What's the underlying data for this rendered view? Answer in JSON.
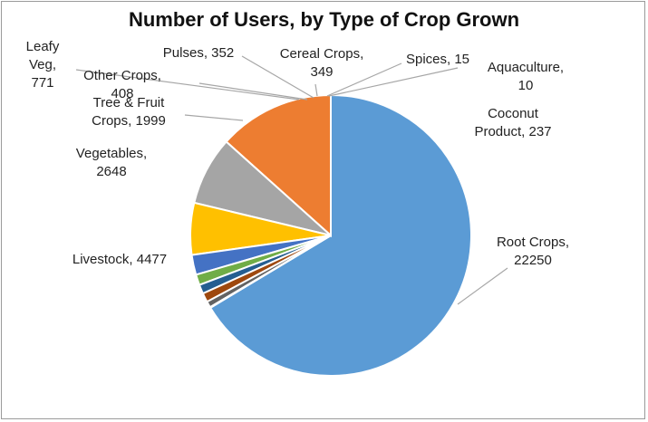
{
  "chart_data": {
    "type": "pie",
    "title": "Number of Users, by Type of Crop Grown",
    "slices": [
      {
        "name": "Root Crops",
        "value": 22250,
        "color": "#5b9bd5",
        "label_lines": [
          "Root Crops,",
          "22250"
        ]
      },
      {
        "name": "Livestock",
        "value": 4477,
        "color": "#ed7d31",
        "label_lines": [
          "Livestock, 4477"
        ]
      },
      {
        "name": "Vegetables",
        "value": 2648,
        "color": "#a5a5a5",
        "label_lines": [
          "Vegetables,",
          "2648"
        ]
      },
      {
        "name": "Tree & Fruit Crops",
        "value": 1999,
        "color": "#ffc000",
        "label_lines": [
          "Tree & Fruit",
          "Crops, 1999"
        ]
      },
      {
        "name": "Leafy Veg",
        "value": 771,
        "color": "#4472c4",
        "label_lines": [
          "Leafy",
          "Veg,",
          "771"
        ]
      },
      {
        "name": "Other Crops",
        "value": 408,
        "color": "#70ad47",
        "label_lines": [
          "Other Crops,",
          "408"
        ]
      },
      {
        "name": "Pulses",
        "value": 352,
        "color": "#255e91",
        "label_lines": [
          "Pulses, 352"
        ]
      },
      {
        "name": "Cereal Crops",
        "value": 349,
        "color": "#9e480e",
        "label_lines": [
          "Cereal Crops,",
          "349"
        ]
      },
      {
        "name": "Coconut Product",
        "value": 237,
        "color": "#636363",
        "label_lines": [
          "Coconut",
          "Product, 237"
        ]
      },
      {
        "name": "Spices",
        "value": 15,
        "color": "#997300",
        "label_lines": [
          "Spices, 15"
        ]
      },
      {
        "name": "Aquaculture",
        "value": 10,
        "color": "#264478",
        "label_lines": [
          "Aquaculture,",
          "10"
        ]
      }
    ],
    "slice_order": "counterclockwise from 12 o'clock, largest first"
  }
}
